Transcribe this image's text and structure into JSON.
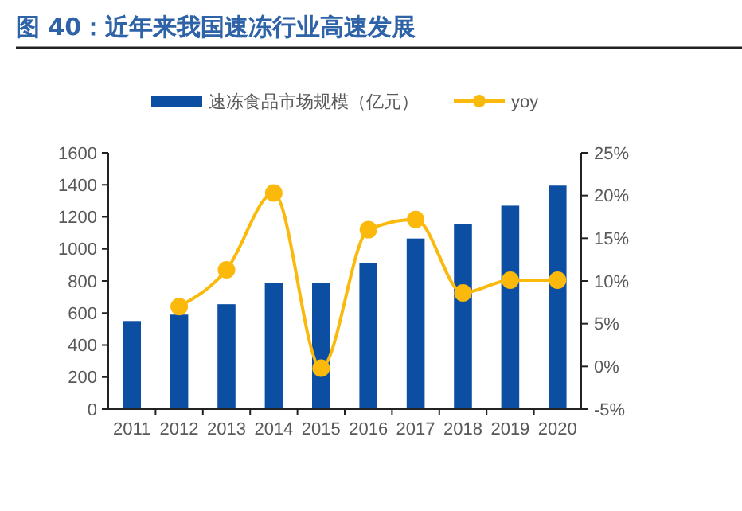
{
  "chart_data": {
    "type": "bar",
    "title": "图 40：近年来我国速冻行业高速发展",
    "categories": [
      "2011",
      "2012",
      "2013",
      "2014",
      "2015",
      "2016",
      "2017",
      "2018",
      "2019",
      "2020"
    ],
    "series": [
      {
        "name": "速冻食品市场规模（亿元）",
        "color": "#0b4ea2",
        "values": [
          550,
          590,
          655,
          790,
          785,
          910,
          1065,
          1155,
          1270,
          1395
        ]
      },
      {
        "name": "yoy",
        "type": "line",
        "axis": "y2",
        "color": "#fbb90c",
        "marker": "circle",
        "values": [
          null,
          7.0,
          11.3,
          20.3,
          -0.2,
          16.0,
          17.2,
          8.6,
          10.1,
          10.1
        ]
      }
    ],
    "ylim": [
      0,
      1600
    ],
    "yticks": [
      0,
      200,
      400,
      600,
      800,
      1000,
      1200,
      1400,
      1600
    ],
    "y2lim": [
      -5,
      25
    ],
    "y2ticks": [
      {
        "value": -5,
        "label": "-5%"
      },
      {
        "value": 0,
        "label": "0%"
      },
      {
        "value": 5,
        "label": "5%"
      },
      {
        "value": 10,
        "label": "10%"
      },
      {
        "value": 15,
        "label": "15%"
      },
      {
        "value": 20,
        "label": "20%"
      },
      {
        "value": 25,
        "label": "25%"
      }
    ],
    "legend": "top",
    "grid": false
  }
}
